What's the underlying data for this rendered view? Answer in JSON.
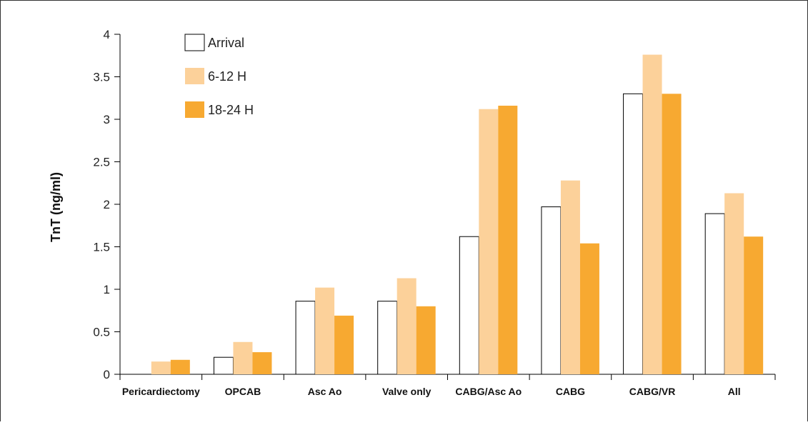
{
  "chart_data": {
    "type": "bar",
    "ylabel": "TnT (ng/ml)",
    "xlabel": "",
    "ylim": [
      0,
      4
    ],
    "yticks": [
      0,
      0.5,
      1,
      1.5,
      2,
      2.5,
      3,
      3.5,
      4
    ],
    "ytick_labels": [
      "0",
      "0.5",
      "1",
      "1.5",
      "2",
      "2.5",
      "3",
      "3.5",
      "4"
    ],
    "grid": false,
    "legend_position": "top-left",
    "categories": [
      "Pericardiectomy",
      "OPCAB",
      "Asc Ao",
      "Valve only",
      "CABG/Asc Ao",
      "CABG",
      "CABG/VR",
      "All"
    ],
    "series": [
      {
        "name": "Arrival",
        "color": "#ffffff",
        "stroke": "#000000",
        "values": [
          null,
          0.2,
          0.86,
          0.86,
          1.62,
          1.97,
          3.3,
          1.89
        ]
      },
      {
        "name": "6-12 H",
        "color": "#fcd19a",
        "stroke": "none",
        "values": [
          0.15,
          0.38,
          1.02,
          1.13,
          3.12,
          2.28,
          3.76,
          2.13
        ]
      },
      {
        "name": "18-24 H",
        "color": "#f7a931",
        "stroke": "none",
        "values": [
          0.17,
          0.26,
          0.69,
          0.8,
          3.16,
          1.54,
          3.3,
          1.62
        ]
      }
    ]
  }
}
